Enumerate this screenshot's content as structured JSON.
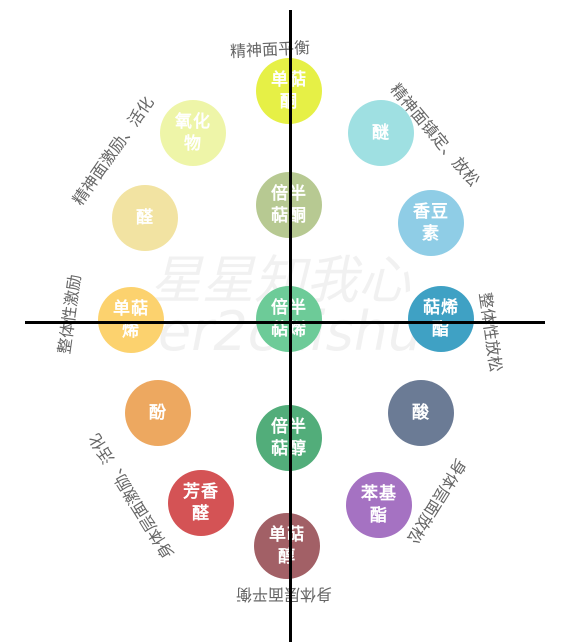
{
  "nodes": [
    {
      "id": "monoterpene-ketone",
      "text": "单萜\n酮",
      "color": "#e6f046"
    },
    {
      "id": "oxide",
      "text": "氧化\n物",
      "color": "#eef5a8"
    },
    {
      "id": "ether",
      "text": "醚",
      "color": "#9fe0e2"
    },
    {
      "id": "aldehyde",
      "text": "醛",
      "color": "#f2e3a2"
    },
    {
      "id": "sesquiterpene-ketone",
      "text": "倍半\n萜酮",
      "color": "#b7c992"
    },
    {
      "id": "coumarin",
      "text": "香豆\n素",
      "color": "#8fcde6"
    },
    {
      "id": "monoterpene",
      "text": "单萜\n烯",
      "color": "#fcd26e"
    },
    {
      "id": "sesquiterpene",
      "text": "倍半\n萜烯",
      "color": "#6dcb98"
    },
    {
      "id": "terpene-ester",
      "text": "萜烯\n酯",
      "color": "#3fa1c4"
    },
    {
      "id": "phenol",
      "text": "酚",
      "color": "#eda860"
    },
    {
      "id": "acid",
      "text": "酸",
      "color": "#6b7b95"
    },
    {
      "id": "sesquiterpene-alcohol",
      "text": "倍半\n萜醇",
      "color": "#52ad7a"
    },
    {
      "id": "aromatic-aldehyde",
      "text": "芳香\n醛",
      "color": "#d45355"
    },
    {
      "id": "phenyl-ester",
      "text": "苯基\n酯",
      "color": "#a572c2"
    },
    {
      "id": "monoterpene-alcohol",
      "text": "单萜\n醇",
      "color": "#a26066"
    }
  ],
  "labels": {
    "top": "精神面平衡",
    "upper_left": "精神面激励、活化",
    "upper_right": "精神面镇定、放松",
    "left": "整体性激励",
    "right": "整体性放松",
    "lower_left": "身体层面激励、活化",
    "lower_right": "身体层面放松",
    "bottom": "身体层面平衡"
  },
  "watermark": {
    "line1": "星星知我心",
    "line2": "er2caishu"
  }
}
